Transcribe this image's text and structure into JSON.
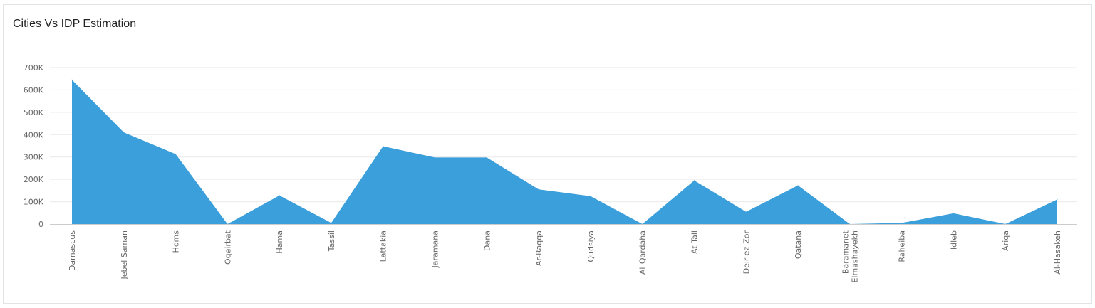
{
  "card": {
    "title": "Cities Vs IDP Estimation"
  },
  "colors": {
    "area_fill": "#3a9fdb",
    "grid": "#e9e9e9",
    "axis_text": "#666666"
  },
  "chart_data": {
    "type": "area",
    "title": "Cities Vs IDP Estimation",
    "xlabel": "",
    "ylabel": "",
    "categories": [
      "Damascus",
      "Jebel Saman",
      "Homs",
      "Oqeirbat",
      "Hama",
      "Tassil",
      "Lattakia",
      "Jaramana",
      "Dana",
      "Ar-Raqqa",
      "Qudsiya",
      "Al-Qardaha",
      "At Tall",
      "Deir-ez-Zor",
      "Qatana",
      "Baramanet Elmashayekh",
      "Raheiba",
      "Idleb",
      "Ariqa",
      "Al-Hasakeh"
    ],
    "values": [
      645000,
      410000,
      313000,
      0,
      128000,
      5000,
      348000,
      298000,
      298000,
      155000,
      125000,
      0,
      195000,
      55000,
      173000,
      0,
      5000,
      48000,
      0,
      110000
    ],
    "ylim": [
      0,
      700000
    ],
    "yticks": [
      0,
      100000,
      200000,
      300000,
      400000,
      500000,
      600000,
      700000
    ],
    "ytick_labels": [
      "0",
      "100K",
      "200K",
      "300K",
      "400K",
      "500K",
      "600K",
      "700K"
    ],
    "grid": true,
    "legend": "none"
  }
}
